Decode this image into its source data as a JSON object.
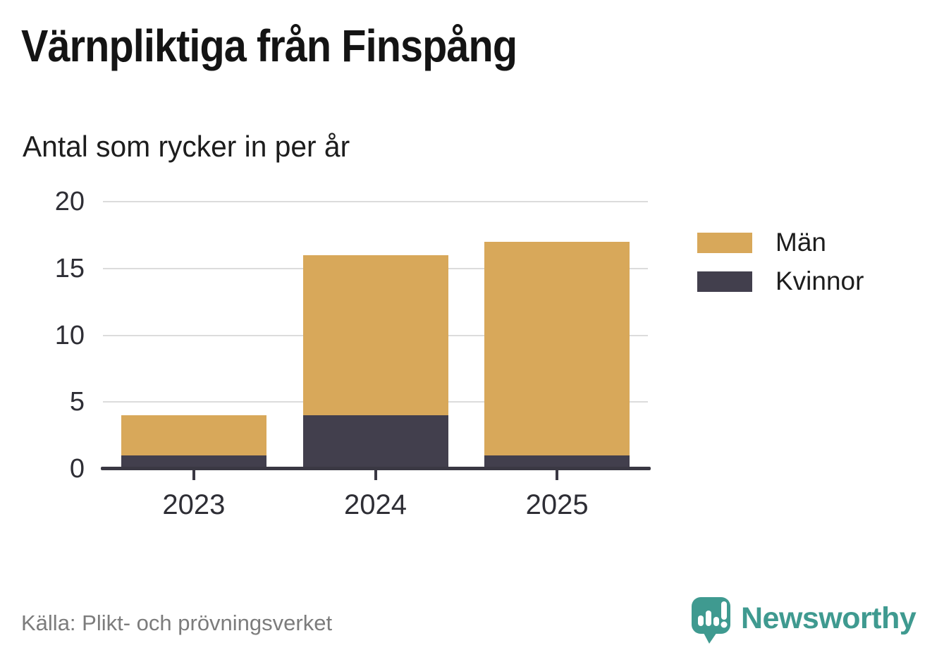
{
  "header": {
    "title": "Värnpliktiga från Finspång",
    "subtitle": "Antal som rycker in per år"
  },
  "footer": {
    "source": "Källa: Plikt- och prövningsverket",
    "brand_name": "Newsworthy"
  },
  "colors": {
    "men": "#D8A85A",
    "women": "#423F4D",
    "axis": "#3A3843",
    "grid": "#DCDCDC",
    "text": "#2E2E35",
    "muted": "#7C7C7C",
    "brand_teal": "#3F9A90"
  },
  "icons": {
    "brand_icon": "newsworthy-speech-bubble-bar-chart-icon"
  },
  "chart_data": {
    "type": "bar",
    "stacked": true,
    "title": "Värnpliktiga från Finspång",
    "subtitle": "Antal som rycker in per år",
    "categories": [
      "2023",
      "2024",
      "2025"
    ],
    "series": [
      {
        "name": "Män",
        "color": "#D8A85A",
        "values": [
          3,
          12,
          16
        ]
      },
      {
        "name": "Kvinnor",
        "color": "#423F4D",
        "values": [
          1,
          4,
          1
        ]
      }
    ],
    "stack_order_bottom_to_top": [
      "Kvinnor",
      "Män"
    ],
    "totals": [
      4,
      16,
      17
    ],
    "ylim": [
      0,
      20
    ],
    "yticks": [
      0,
      5,
      10,
      15,
      20
    ],
    "grid": true,
    "legend_position": "right",
    "xlabel": "",
    "ylabel": "",
    "source": "Källa: Plikt- och prövningsverket"
  }
}
